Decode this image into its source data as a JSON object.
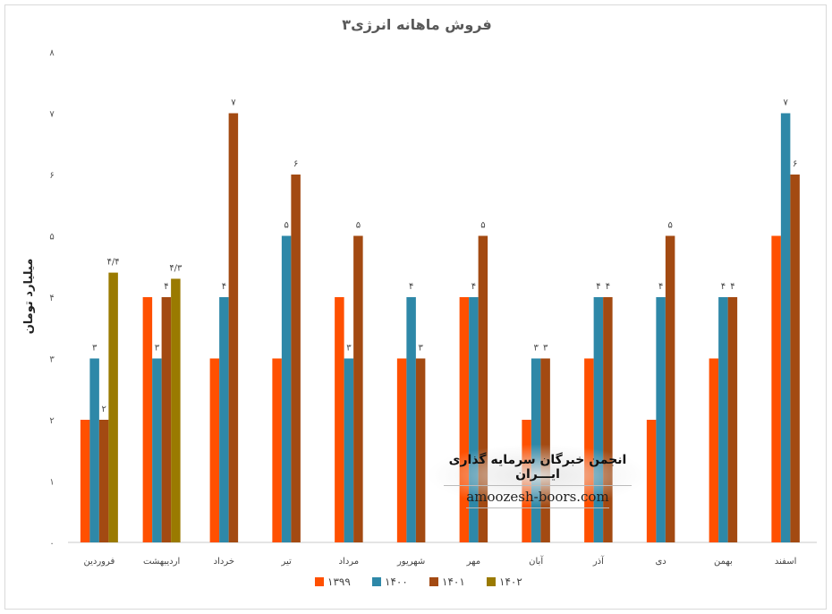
{
  "chart_data": {
    "type": "bar",
    "title": "فروش ماهانه انرژی۳",
    "ylabel": "میلیارد تومان",
    "xlabel": "",
    "ylim": [
      0,
      8
    ],
    "yticks": [
      "۰",
      "۱",
      "۲",
      "۳",
      "۴",
      "۵",
      "۶",
      "۷",
      "۸"
    ],
    "categories": [
      "فروردین",
      "اردیبهشت",
      "خرداد",
      "تیر",
      "مرداد",
      "شهریور",
      "مهر",
      "آبان",
      "آذر",
      "دی",
      "بهمن",
      "اسفند"
    ],
    "grid": false,
    "legend_position": "bottom",
    "series": [
      {
        "name": "۱۳۹۹",
        "color": "#ff5000",
        "values": [
          2,
          4,
          3,
          3,
          4,
          3,
          4,
          2,
          3,
          2,
          3,
          5
        ],
        "labels": [
          "",
          "",
          "",
          "",
          "",
          "",
          "",
          "",
          "",
          "",
          "",
          ""
        ]
      },
      {
        "name": "۱۴۰۰",
        "color": "#2e88a8",
        "values": [
          3,
          3,
          4,
          5,
          3,
          4,
          4,
          3,
          4,
          4,
          4,
          7
        ],
        "labels": [
          "۳",
          "۳",
          "۴",
          "۵",
          "۳",
          "۴",
          "۴",
          "۳",
          "۴",
          "۴",
          "۴",
          "۷"
        ]
      },
      {
        "name": "۱۴۰۱",
        "color": "#a34a12",
        "values": [
          2,
          4,
          7,
          6,
          5,
          3,
          5,
          3,
          4,
          5,
          4,
          6
        ],
        "labels": [
          "۲",
          "۴",
          "۷",
          "۶",
          "۵",
          "۳",
          "۵",
          "۳",
          "۴",
          "۵",
          "۴",
          "۶"
        ]
      },
      {
        "name": "۱۴۰۲",
        "color": "#9a7a00",
        "values": [
          4.4,
          4.3,
          null,
          null,
          null,
          null,
          null,
          null,
          null,
          null,
          null,
          null
        ],
        "labels": [
          "۴/۴",
          "۴/۳",
          "",
          "",
          "",
          "",
          "",
          "",
          "",
          "",
          "",
          ""
        ]
      }
    ]
  },
  "watermark": {
    "title": "انجمن خبرگان سرمایه گذاری ایـــران",
    "url": "amoozesh-boors.com"
  }
}
